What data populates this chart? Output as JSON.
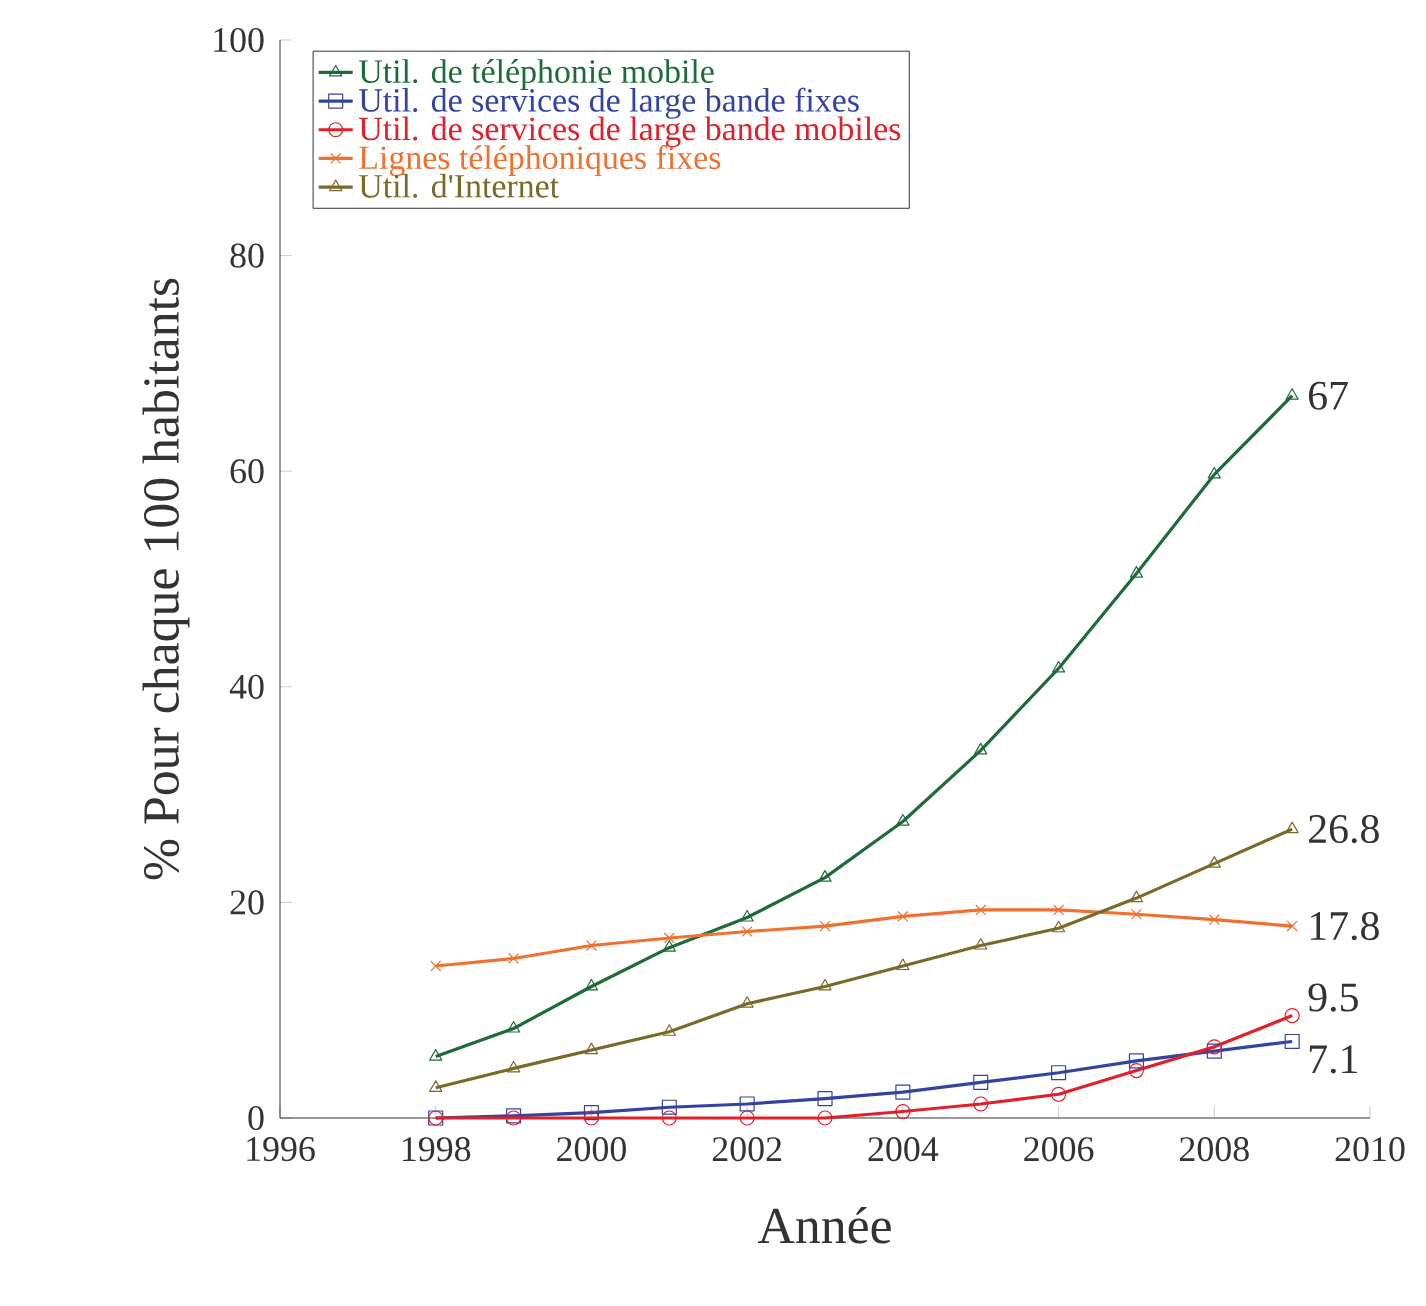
{
  "chart_data": {
    "type": "line",
    "xlabel": "Année",
    "ylabel": "% Pour chaque 100 habitants",
    "x": [
      1998,
      1999,
      2000,
      2001,
      2002,
      2003,
      2004,
      2005,
      2006,
      2007,
      2008,
      2009
    ],
    "xlim": [
      1996,
      2010
    ],
    "xticks": [
      1996,
      1998,
      2000,
      2002,
      2004,
      2006,
      2008,
      2010
    ],
    "ylim": [
      0,
      100
    ],
    "yticks": [
      0,
      20,
      40,
      60,
      80,
      100
    ],
    "legend": "top left",
    "grid": false,
    "series": [
      {
        "name": "Util. de téléphonie mobile",
        "color": "#1e6b3a",
        "marker": "triangle",
        "values": [
          5.7,
          8.3,
          12.2,
          15.8,
          18.6,
          22.3,
          27.5,
          34.1,
          41.7,
          50.5,
          59.7,
          67
        ],
        "value_labels": [
          null,
          null,
          null,
          null,
          null,
          null,
          null,
          null,
          null,
          null,
          null,
          "67"
        ]
      },
      {
        "name": "Util. de services de large bande fixes",
        "color": "#3344a0",
        "marker": "square",
        "values": [
          0,
          0.2,
          0.5,
          1,
          1.3,
          1.8,
          2.4,
          3.3,
          4.2,
          5.3,
          6.2,
          7.1
        ],
        "value_labels": [
          null,
          null,
          null,
          null,
          null,
          null,
          null,
          null,
          null,
          null,
          null,
          "7.1"
        ]
      },
      {
        "name": "Util. de services de large bande mobiles",
        "color": "#e0202a",
        "marker": "circle",
        "values": [
          0,
          0,
          0,
          0,
          0,
          0,
          0.6,
          1.3,
          2.2,
          4.4,
          6.6,
          9.5
        ],
        "value_labels": [
          null,
          null,
          null,
          null,
          null,
          null,
          null,
          null,
          null,
          null,
          null,
          "9.5"
        ]
      },
      {
        "name": "Lignes téléphoniques fixes",
        "color": "#f07030",
        "marker": "cross",
        "values": [
          14.1,
          14.8,
          16,
          16.7,
          17.3,
          17.8,
          18.7,
          19.3,
          19.3,
          18.9,
          18.4,
          17.8
        ],
        "value_labels": [
          null,
          null,
          null,
          null,
          null,
          null,
          null,
          null,
          null,
          null,
          null,
          "17.8"
        ]
      },
      {
        "name": "Util. d'Internet",
        "color": "#7a6a2a",
        "marker": "triangle",
        "values": [
          2.8,
          4.6,
          6.3,
          8,
          10.6,
          12.2,
          14.1,
          16,
          17.6,
          20.4,
          23.6,
          26.8
        ],
        "value_labels": [
          null,
          null,
          null,
          null,
          null,
          null,
          null,
          null,
          null,
          null,
          null,
          "26.8"
        ]
      }
    ]
  }
}
